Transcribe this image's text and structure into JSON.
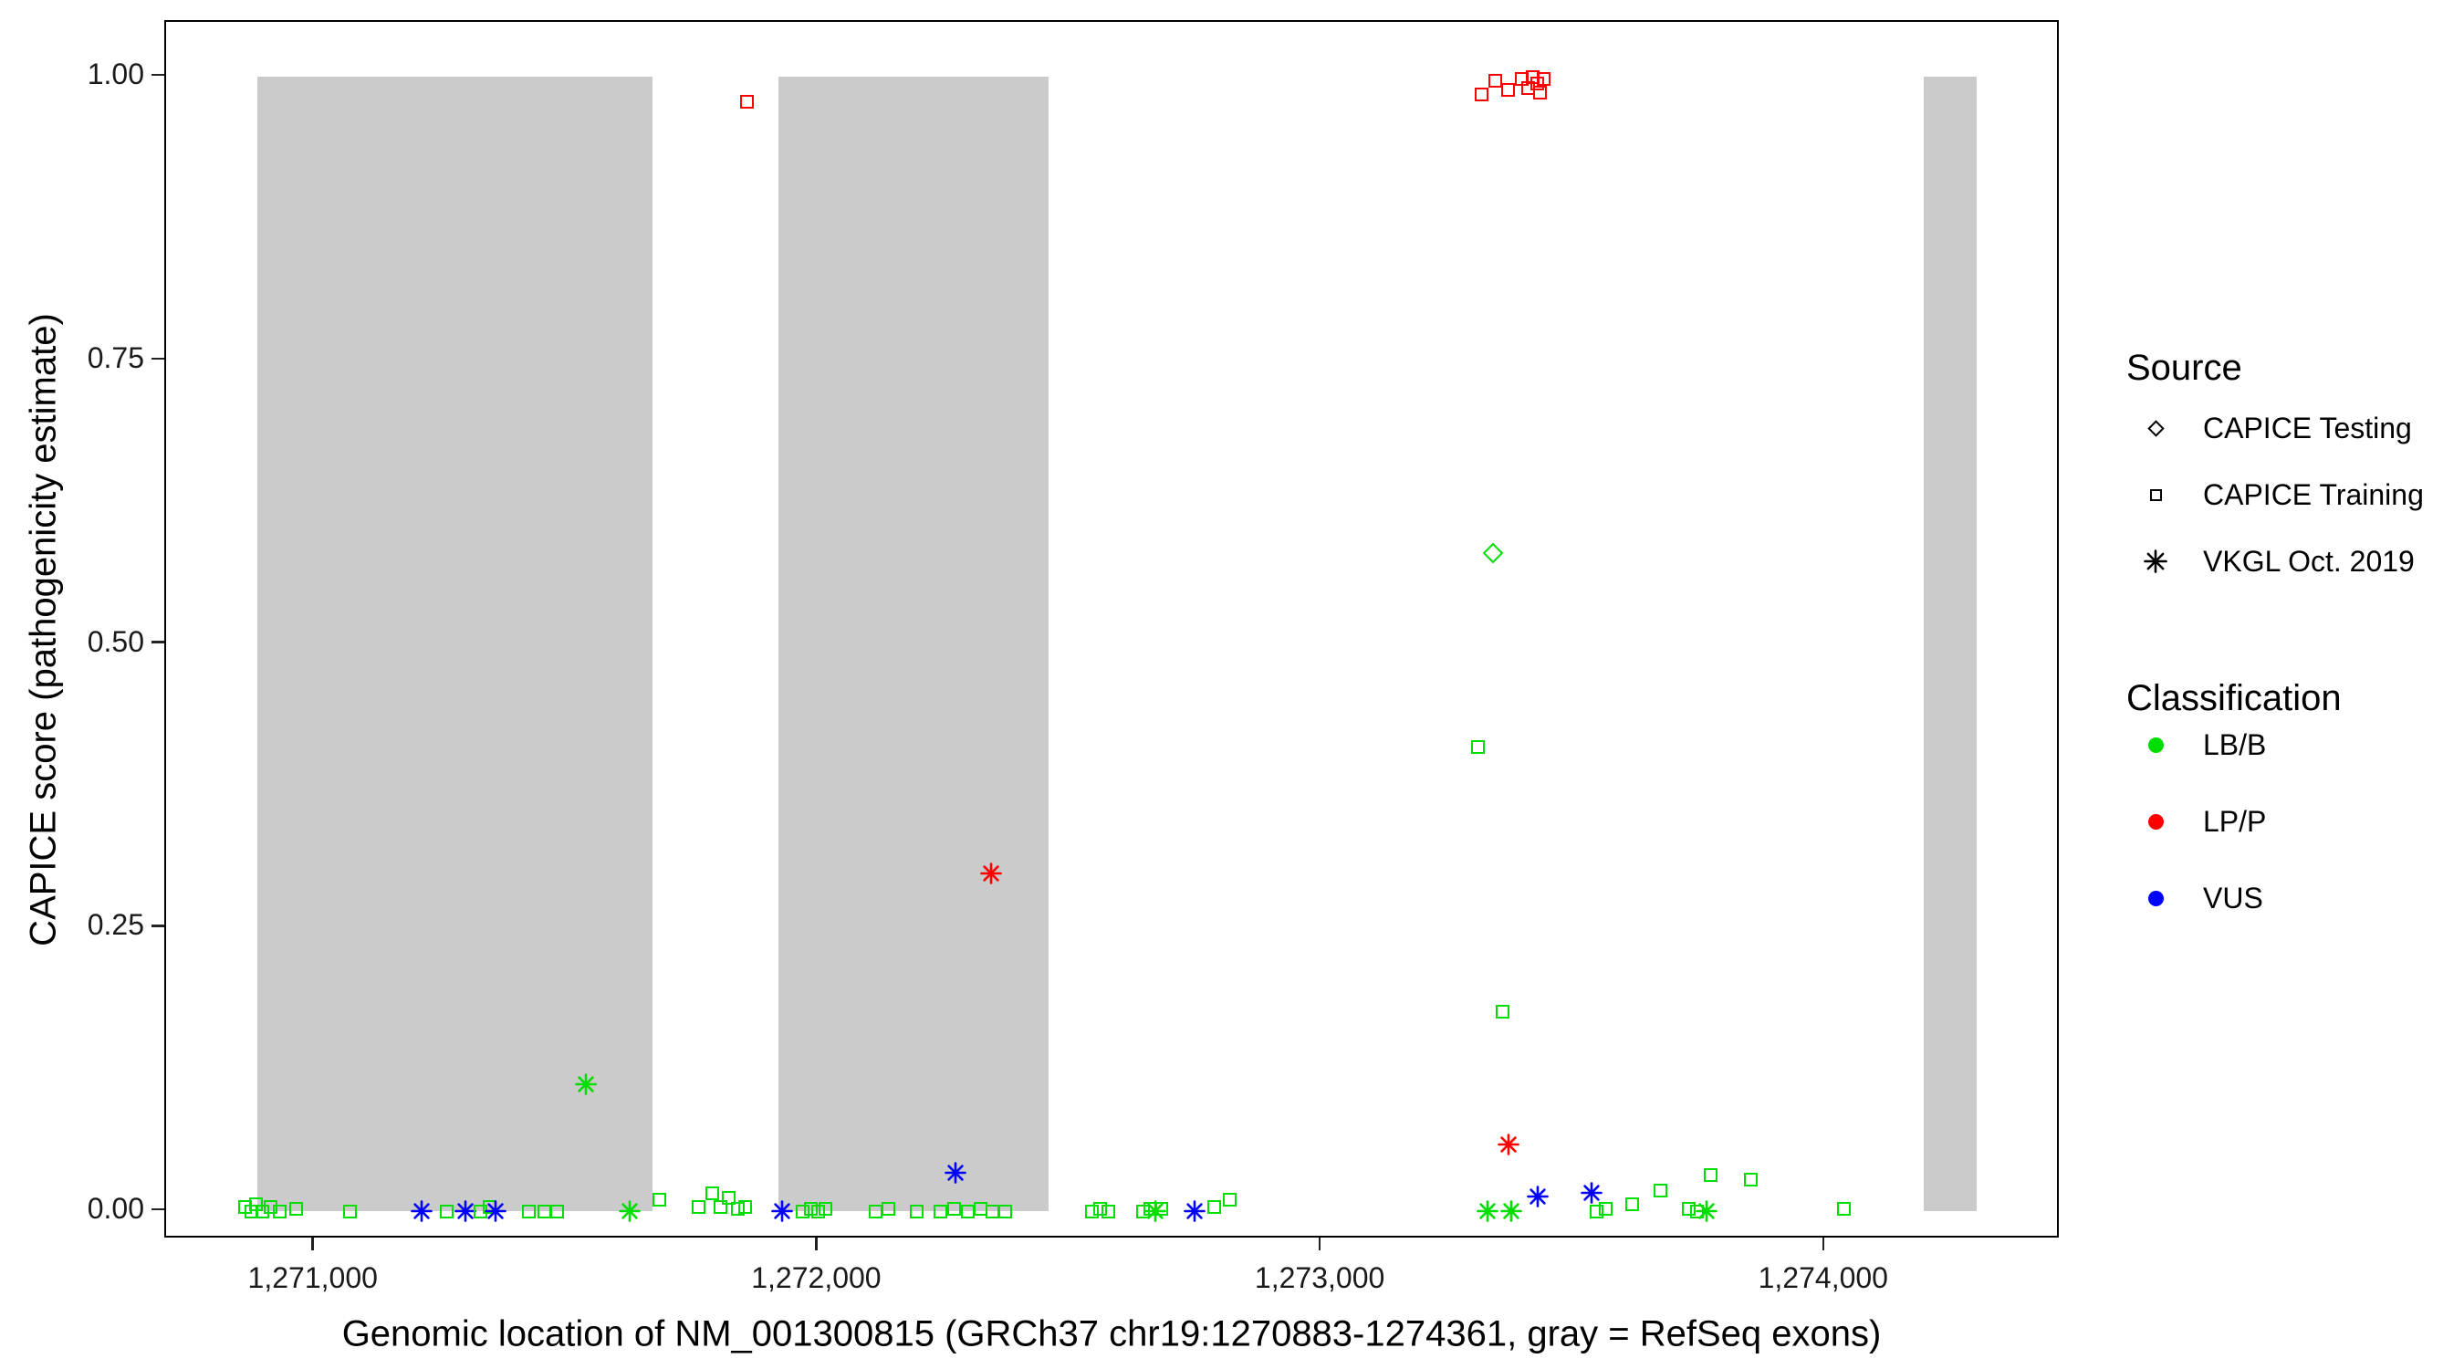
{
  "chart_data": {
    "type": "scatter",
    "title": "",
    "xlabel": "Genomic location of NM_001300815 (GRCh37 chr19:1270883-1274361, gray = RefSeq exons)",
    "ylabel": "CAPICE score (pathogenicity estimate)",
    "x_domain": [
      1270705,
      1274468
    ],
    "y_domain": [
      0,
      1
    ],
    "x_ticks": [
      {
        "value": 1271000,
        "label": "1,271,000"
      },
      {
        "value": 1272000,
        "label": "1,272,000"
      },
      {
        "value": 1273000,
        "label": "1,273,000"
      },
      {
        "value": 1274000,
        "label": "1,274,000"
      }
    ],
    "y_ticks": [
      {
        "value": 0.0,
        "label": "0.00"
      },
      {
        "value": 0.25,
        "label": "0.25"
      },
      {
        "value": 0.5,
        "label": "0.50"
      },
      {
        "value": 0.75,
        "label": "0.75"
      },
      {
        "value": 1.0,
        "label": "1.00"
      }
    ],
    "grid": false,
    "exon_color": "#cbcbcb",
    "refseq_exons": [
      [
        1270886,
        1271672
      ],
      [
        1271922,
        1272457
      ],
      [
        1274196,
        1274301
      ]
    ],
    "classification_colors": {
      "LB/B": "#00dd00",
      "LP/P": "#ff0000",
      "VUS": "#0000ff"
    },
    "source_shapes": {
      "testing": "diamond",
      "training": "square",
      "vkgl": "asterisk"
    },
    "points_format": [
      "genomic_position",
      "capice_score",
      "source",
      "classification"
    ],
    "points": [
      [
        1270862,
        0.004,
        "training",
        "LB/B"
      ],
      [
        1270874,
        0.0,
        "training",
        "LB/B"
      ],
      [
        1270884,
        0.006,
        "training",
        "LB/B"
      ],
      [
        1270897,
        0.0,
        "training",
        "LB/B"
      ],
      [
        1270912,
        0.004,
        "training",
        "LB/B"
      ],
      [
        1270930,
        0.0,
        "training",
        "LB/B"
      ],
      [
        1270963,
        0.002,
        "training",
        "LB/B"
      ],
      [
        1271070,
        0.0,
        "training",
        "LB/B"
      ],
      [
        1271213,
        0.0,
        "vkgl",
        "VUS"
      ],
      [
        1271262,
        0.0,
        "training",
        "LB/B"
      ],
      [
        1271299,
        0.0,
        "vkgl",
        "VUS"
      ],
      [
        1271330,
        0.0,
        "training",
        "LB/B"
      ],
      [
        1271348,
        0.004,
        "training",
        "LB/B"
      ],
      [
        1271360,
        0.0,
        "vkgl",
        "VUS"
      ],
      [
        1271425,
        0.0,
        "training",
        "LB/B"
      ],
      [
        1271457,
        0.0,
        "training",
        "LB/B"
      ],
      [
        1271482,
        0.0,
        "training",
        "LB/B"
      ],
      [
        1271538,
        0.112,
        "vkgl",
        "LB/B"
      ],
      [
        1271625,
        0.0,
        "vkgl",
        "LB/B"
      ],
      [
        1271685,
        0.01,
        "training",
        "LB/B"
      ],
      [
        1271763,
        0.004,
        "training",
        "LB/B"
      ],
      [
        1271790,
        0.016,
        "training",
        "LB/B"
      ],
      [
        1271806,
        0.004,
        "training",
        "LB/B"
      ],
      [
        1271823,
        0.012,
        "training",
        "LB/B"
      ],
      [
        1271840,
        0.002,
        "training",
        "LB/B"
      ],
      [
        1271856,
        0.004,
        "training",
        "LB/B"
      ],
      [
        1271858,
        0.978,
        "training",
        "LP/P"
      ],
      [
        1271928,
        0.0,
        "vkgl",
        "VUS"
      ],
      [
        1271970,
        0.0,
        "training",
        "LB/B"
      ],
      [
        1271985,
        0.002,
        "training",
        "LB/B"
      ],
      [
        1272000,
        0.0,
        "training",
        "LB/B"
      ],
      [
        1272014,
        0.002,
        "training",
        "LB/B"
      ],
      [
        1272115,
        0.0,
        "training",
        "LB/B"
      ],
      [
        1272140,
        0.002,
        "training",
        "LB/B"
      ],
      [
        1272196,
        0.0,
        "training",
        "LB/B"
      ],
      [
        1272243,
        0.0,
        "training",
        "LB/B"
      ],
      [
        1272270,
        0.002,
        "training",
        "LB/B"
      ],
      [
        1272273,
        0.034,
        "vkgl",
        "VUS"
      ],
      [
        1272297,
        0.0,
        "training",
        "LB/B"
      ],
      [
        1272322,
        0.002,
        "training",
        "LB/B"
      ],
      [
        1272343,
        0.298,
        "vkgl",
        "LP/P"
      ],
      [
        1272347,
        0.0,
        "training",
        "LB/B"
      ],
      [
        1272372,
        0.0,
        "training",
        "LB/B"
      ],
      [
        1272543,
        0.0,
        "training",
        "LB/B"
      ],
      [
        1272560,
        0.002,
        "training",
        "LB/B"
      ],
      [
        1272577,
        0.0,
        "training",
        "LB/B"
      ],
      [
        1272645,
        0.0,
        "training",
        "LB/B"
      ],
      [
        1272660,
        0.002,
        "training",
        "LB/B"
      ],
      [
        1272670,
        0.0,
        "vkgl",
        "LB/B"
      ],
      [
        1272682,
        0.002,
        "training",
        "LB/B"
      ],
      [
        1272748,
        0.0,
        "vkgl",
        "VUS"
      ],
      [
        1272787,
        0.004,
        "training",
        "LB/B"
      ],
      [
        1272818,
        0.01,
        "training",
        "LB/B"
      ],
      [
        1273310,
        0.409,
        "training",
        "LB/B"
      ],
      [
        1273318,
        0.984,
        "training",
        "LP/P"
      ],
      [
        1273330,
        0.0,
        "vkgl",
        "LB/B"
      ],
      [
        1273341,
        0.58,
        "testing",
        "LB/B"
      ],
      [
        1273345,
        0.996,
        "training",
        "LP/P"
      ],
      [
        1273360,
        0.176,
        "training",
        "LB/B"
      ],
      [
        1273370,
        0.988,
        "training",
        "LP/P"
      ],
      [
        1273372,
        0.059,
        "vkgl",
        "LP/P"
      ],
      [
        1273376,
        0.0,
        "vkgl",
        "LB/B"
      ],
      [
        1273398,
        0.998,
        "training",
        "LP/P"
      ],
      [
        1273410,
        0.99,
        "training",
        "LP/P"
      ],
      [
        1273420,
        1.0,
        "training",
        "LP/P"
      ],
      [
        1273428,
        0.994,
        "training",
        "LP/P"
      ],
      [
        1273434,
        0.986,
        "training",
        "LP/P"
      ],
      [
        1273442,
        0.998,
        "training",
        "LP/P"
      ],
      [
        1273430,
        0.013,
        "vkgl",
        "VUS"
      ],
      [
        1273537,
        0.016,
        "vkgl",
        "VUS"
      ],
      [
        1273547,
        0.0,
        "training",
        "LB/B"
      ],
      [
        1273565,
        0.002,
        "training",
        "LB/B"
      ],
      [
        1273617,
        0.006,
        "training",
        "LB/B"
      ],
      [
        1273673,
        0.018,
        "training",
        "LB/B"
      ],
      [
        1273730,
        0.002,
        "training",
        "LB/B"
      ],
      [
        1273746,
        0.0,
        "training",
        "LB/B"
      ],
      [
        1273765,
        0.0,
        "vkgl",
        "LB/B"
      ],
      [
        1273772,
        0.032,
        "training",
        "LB/B"
      ],
      [
        1273852,
        0.028,
        "training",
        "LB/B"
      ],
      [
        1274038,
        0.002,
        "training",
        "LB/B"
      ]
    ]
  },
  "legend": {
    "source": {
      "title": "Source",
      "items": [
        {
          "label": "CAPICE Testing",
          "shape": "diamond"
        },
        {
          "label": "CAPICE Training",
          "shape": "square"
        },
        {
          "label": "VKGL Oct. 2019",
          "shape": "asterisk"
        }
      ]
    },
    "classification": {
      "title": "Classification",
      "items": [
        {
          "label": "LB/B",
          "color": "#00dd00"
        },
        {
          "label": "LP/P",
          "color": "#ff0000"
        },
        {
          "label": "VUS",
          "color": "#0000ff"
        }
      ]
    }
  }
}
